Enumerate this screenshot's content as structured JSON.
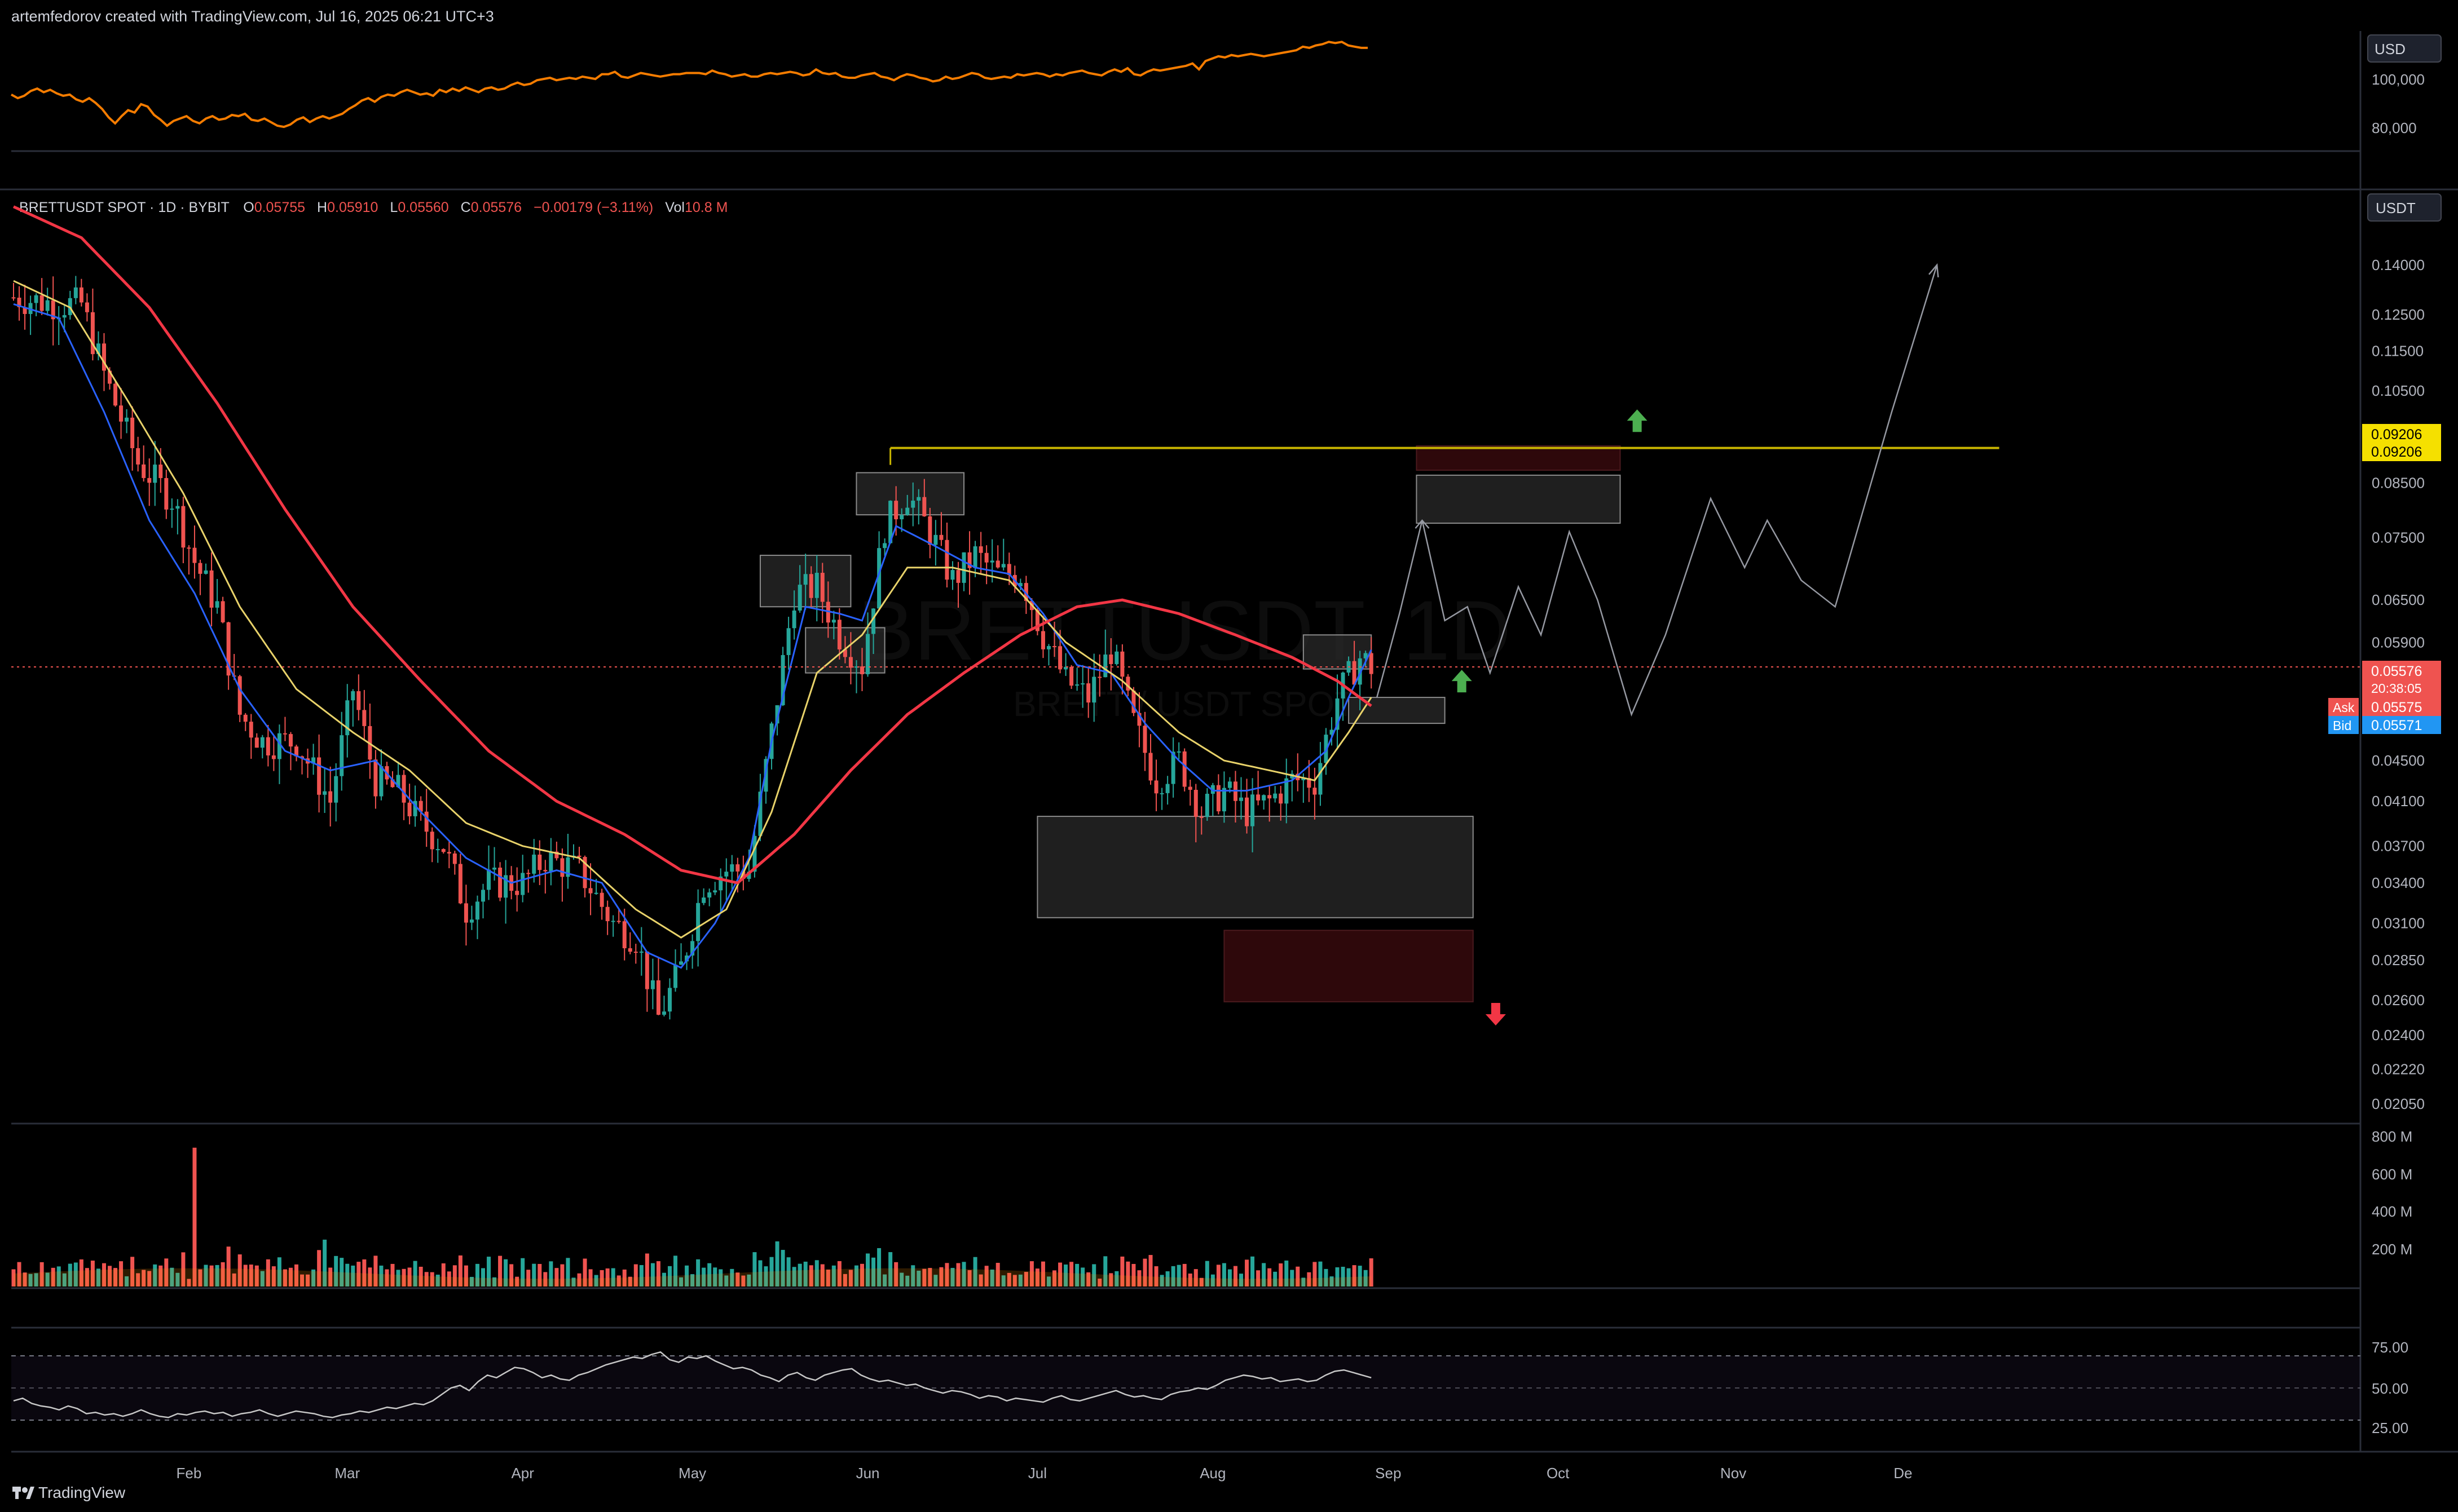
{
  "header": {
    "credit": "artemfedorov created with TradingView.com, Jul 16, 2025 06:21 UTC+3"
  },
  "footer": {
    "brand": "TradingView"
  },
  "colors": {
    "up": "#26a69a",
    "down": "#ef5350",
    "ema_fast": "#2962ff",
    "ema_mid": "#e8d26a",
    "ema_slow": "#f23645",
    "compare": "#f57c00",
    "level": "#c8b400",
    "rsi": "#c7c7c7"
  },
  "compare_pane": {
    "currency": "USD",
    "ticks": [
      "100,000",
      "80,000"
    ],
    "series": [
      104,
      101,
      103,
      107,
      109,
      106,
      108,
      105,
      103,
      104,
      100,
      98,
      101,
      97,
      92,
      85,
      80,
      86,
      91,
      89,
      96,
      94,
      87,
      83,
      78,
      82,
      84,
      86,
      82,
      80,
      84,
      86,
      83,
      84,
      87,
      86,
      88,
      83,
      82,
      84,
      81,
      78,
      77,
      79,
      83,
      85,
      81,
      84,
      86,
      84,
      86,
      88,
      92,
      95,
      99,
      101,
      98,
      102,
      104,
      103,
      106,
      108,
      106,
      104,
      105,
      103,
      108,
      106,
      109,
      107,
      110,
      108,
      106,
      109,
      110,
      108,
      109,
      112,
      114,
      112,
      113,
      116,
      117,
      118,
      116,
      117,
      118,
      117,
      119,
      118,
      117,
      121,
      121,
      123,
      119,
      118,
      120,
      122,
      121,
      120,
      119,
      120,
      121,
      121,
      122,
      122,
      122,
      121,
      124,
      122,
      121,
      119,
      120,
      121,
      119,
      119,
      121,
      122,
      121,
      122,
      123,
      122,
      120,
      121,
      125,
      122,
      121,
      122,
      119,
      118,
      118,
      120,
      121,
      122,
      119,
      118,
      116,
      119,
      121,
      120,
      118,
      117,
      115,
      116,
      119,
      117,
      118,
      120,
      122,
      121,
      118,
      117,
      118,
      119,
      118,
      121,
      120,
      121,
      122,
      121,
      119,
      121,
      120,
      122,
      123,
      124,
      122,
      121,
      120,
      123,
      125,
      123,
      126,
      121,
      120,
      123,
      125,
      124,
      125,
      126,
      127,
      128,
      130,
      125,
      132,
      134,
      136,
      135,
      137,
      136,
      137,
      138,
      137,
      136,
      137,
      138,
      139,
      140,
      141,
      144,
      143,
      145,
      146,
      148,
      147,
      148,
      145,
      144,
      143,
      143
    ]
  },
  "legend": {
    "symbol": "BRETTUSDT SPOT · 1D · BYBIT",
    "o_label": "O",
    "o": "0.05755",
    "h_label": "H",
    "h": "0.05910",
    "l_label": "L",
    "l": "0.05560",
    "c_label": "C",
    "c": "0.05576",
    "change": "−0.00179 (−3.11%)",
    "vol_label": "Vol",
    "vol": "10.8 M"
  },
  "watermark": {
    "line1": "BRETTUSDT, 1D",
    "line2": "BRETT / USDT SPOT"
  },
  "price_axis": {
    "currency": "USDT",
    "ticks": [
      "0.14000",
      "0.12500",
      "0.11500",
      "0.10500",
      "0.09206",
      "0.08500",
      "0.07500",
      "0.06500",
      "0.05900",
      "0.04500",
      "0.04100",
      "0.03700",
      "0.03400",
      "0.03100",
      "0.02850",
      "0.02600",
      "0.02400",
      "0.02220",
      "0.02050"
    ],
    "level_label": "0.09206",
    "last_price": "0.05576",
    "countdown": "20:38:05",
    "ask_label": "Ask",
    "ask": "0.05575",
    "bid_label": "Bid",
    "bid": "0.05571"
  },
  "volume_axis": {
    "ticks": [
      "800 M",
      "600 M",
      "400 M",
      "200 M"
    ]
  },
  "rsi_axis": {
    "ticks": [
      "75.00",
      "50.00",
      "25.00"
    ]
  },
  "time_axis": {
    "ticks": [
      "Feb",
      "Mar",
      "Apr",
      "May",
      "Jun",
      "Jul",
      "Aug",
      "Sep",
      "Oct",
      "Nov",
      "De"
    ]
  },
  "chart_data": {
    "type": "candlestick",
    "symbol": "BRETTUSDT",
    "interval": "1D",
    "price_scale": "log",
    "anchors": [
      {
        "i": 0,
        "p": 0.13
      },
      {
        "i": 8,
        "p": 0.128
      },
      {
        "i": 12,
        "p": 0.128
      },
      {
        "i": 16,
        "p": 0.109
      },
      {
        "i": 22,
        "p": 0.089
      },
      {
        "i": 28,
        "p": 0.082
      },
      {
        "i": 32,
        "p": 0.071
      },
      {
        "i": 36,
        "p": 0.064
      },
      {
        "i": 40,
        "p": 0.05
      },
      {
        "i": 44,
        "p": 0.047
      },
      {
        "i": 50,
        "p": 0.047
      },
      {
        "i": 56,
        "p": 0.041
      },
      {
        "i": 60,
        "p": 0.053
      },
      {
        "i": 64,
        "p": 0.043
      },
      {
        "i": 68,
        "p": 0.042
      },
      {
        "i": 72,
        "p": 0.039
      },
      {
        "i": 76,
        "p": 0.037
      },
      {
        "i": 80,
        "p": 0.032
      },
      {
        "i": 84,
        "p": 0.034
      },
      {
        "i": 90,
        "p": 0.034
      },
      {
        "i": 94,
        "p": 0.036
      },
      {
        "i": 100,
        "p": 0.035
      },
      {
        "i": 106,
        "p": 0.031
      },
      {
        "i": 110,
        "p": 0.03
      },
      {
        "i": 114,
        "p": 0.025
      },
      {
        "i": 118,
        "p": 0.028
      },
      {
        "i": 122,
        "p": 0.034
      },
      {
        "i": 126,
        "p": 0.035
      },
      {
        "i": 130,
        "p": 0.035
      },
      {
        "i": 134,
        "p": 0.048
      },
      {
        "i": 138,
        "p": 0.066
      },
      {
        "i": 142,
        "p": 0.067
      },
      {
        "i": 146,
        "p": 0.06
      },
      {
        "i": 150,
        "p": 0.056
      },
      {
        "i": 154,
        "p": 0.077
      },
      {
        "i": 158,
        "p": 0.083
      },
      {
        "i": 162,
        "p": 0.076
      },
      {
        "i": 166,
        "p": 0.068
      },
      {
        "i": 170,
        "p": 0.072
      },
      {
        "i": 174,
        "p": 0.069
      },
      {
        "i": 178,
        "p": 0.069
      },
      {
        "i": 182,
        "p": 0.06
      },
      {
        "i": 186,
        "p": 0.054
      },
      {
        "i": 190,
        "p": 0.052
      },
      {
        "i": 194,
        "p": 0.058
      },
      {
        "i": 198,
        "p": 0.049
      },
      {
        "i": 202,
        "p": 0.043
      },
      {
        "i": 206,
        "p": 0.045
      },
      {
        "i": 210,
        "p": 0.04
      },
      {
        "i": 214,
        "p": 0.042
      },
      {
        "i": 218,
        "p": 0.04
      },
      {
        "i": 222,
        "p": 0.041
      },
      {
        "i": 226,
        "p": 0.043
      },
      {
        "i": 230,
        "p": 0.043
      },
      {
        "i": 234,
        "p": 0.052
      },
      {
        "i": 238,
        "p": 0.057
      },
      {
        "i": 240,
        "p": 0.0558
      }
    ],
    "ema_fast": [
      [
        0,
        0.128
      ],
      [
        8,
        0.124
      ],
      [
        16,
        0.1
      ],
      [
        24,
        0.078
      ],
      [
        32,
        0.066
      ],
      [
        40,
        0.053
      ],
      [
        48,
        0.046
      ],
      [
        56,
        0.044
      ],
      [
        64,
        0.045
      ],
      [
        72,
        0.04
      ],
      [
        80,
        0.036
      ],
      [
        88,
        0.034
      ],
      [
        96,
        0.035
      ],
      [
        104,
        0.034
      ],
      [
        112,
        0.029
      ],
      [
        118,
        0.028
      ],
      [
        124,
        0.031
      ],
      [
        130,
        0.036
      ],
      [
        134,
        0.047
      ],
      [
        140,
        0.064
      ],
      [
        146,
        0.063
      ],
      [
        150,
        0.062
      ],
      [
        156,
        0.077
      ],
      [
        162,
        0.074
      ],
      [
        170,
        0.07
      ],
      [
        176,
        0.069
      ],
      [
        182,
        0.063
      ],
      [
        188,
        0.056
      ],
      [
        194,
        0.055
      ],
      [
        200,
        0.049
      ],
      [
        206,
        0.045
      ],
      [
        212,
        0.042
      ],
      [
        218,
        0.042
      ],
      [
        226,
        0.043
      ],
      [
        232,
        0.046
      ],
      [
        236,
        0.052
      ],
      [
        240,
        0.058
      ]
    ],
    "ema_mid": [
      [
        0,
        0.135
      ],
      [
        10,
        0.127
      ],
      [
        20,
        0.103
      ],
      [
        30,
        0.083
      ],
      [
        40,
        0.064
      ],
      [
        50,
        0.053
      ],
      [
        60,
        0.048
      ],
      [
        70,
        0.044
      ],
      [
        80,
        0.039
      ],
      [
        90,
        0.037
      ],
      [
        100,
        0.036
      ],
      [
        110,
        0.032
      ],
      [
        118,
        0.03
      ],
      [
        126,
        0.032
      ],
      [
        134,
        0.04
      ],
      [
        142,
        0.055
      ],
      [
        150,
        0.06
      ],
      [
        158,
        0.07
      ],
      [
        166,
        0.07
      ],
      [
        176,
        0.068
      ],
      [
        186,
        0.059
      ],
      [
        196,
        0.054
      ],
      [
        206,
        0.048
      ],
      [
        214,
        0.045
      ],
      [
        222,
        0.044
      ],
      [
        230,
        0.043
      ],
      [
        236,
        0.048
      ],
      [
        240,
        0.052
      ]
    ],
    "ema_slow": [
      [
        0,
        0.16
      ],
      [
        12,
        0.149
      ],
      [
        24,
        0.127
      ],
      [
        36,
        0.102
      ],
      [
        48,
        0.08
      ],
      [
        60,
        0.064
      ],
      [
        72,
        0.054
      ],
      [
        84,
        0.046
      ],
      [
        96,
        0.041
      ],
      [
        108,
        0.038
      ],
      [
        118,
        0.035
      ],
      [
        128,
        0.034
      ],
      [
        138,
        0.038
      ],
      [
        148,
        0.044
      ],
      [
        158,
        0.05
      ],
      [
        168,
        0.055
      ],
      [
        178,
        0.06
      ],
      [
        188,
        0.064
      ],
      [
        196,
        0.065
      ],
      [
        206,
        0.063
      ],
      [
        216,
        0.06
      ],
      [
        226,
        0.057
      ],
      [
        234,
        0.054
      ],
      [
        240,
        0.051
      ]
    ],
    "resistance_level": 0.09206,
    "projection": [
      [
        241,
        0.052
      ],
      [
        245,
        0.063
      ],
      [
        249,
        0.078
      ],
      [
        253,
        0.062
      ],
      [
        257,
        0.064
      ],
      [
        261,
        0.055
      ],
      [
        266,
        0.067
      ],
      [
        270,
        0.06
      ],
      [
        275,
        0.076
      ],
      [
        280,
        0.065
      ],
      [
        286,
        0.05
      ],
      [
        292,
        0.06
      ],
      [
        300,
        0.082
      ],
      [
        306,
        0.07
      ],
      [
        310,
        0.078
      ],
      [
        316,
        0.068
      ],
      [
        322,
        0.064
      ],
      [
        332,
        0.1
      ],
      [
        340,
        0.14
      ]
    ],
    "zones": [
      {
        "kind": "supply",
        "i0": 248,
        "i1": 284,
        "p_high": 0.0925,
        "p_low": 0.0875
      },
      {
        "kind": "range",
        "i0": 248,
        "i1": 284,
        "p_high": 0.0865,
        "p_low": 0.0775
      },
      {
        "kind": "range",
        "i0": 132,
        "i1": 148,
        "p_high": 0.072,
        "p_low": 0.064
      },
      {
        "kind": "range",
        "i0": 140,
        "i1": 154,
        "p_high": 0.061,
        "p_low": 0.055
      },
      {
        "kind": "range",
        "i0": 149,
        "i1": 168,
        "p_high": 0.087,
        "p_low": 0.079
      },
      {
        "kind": "range",
        "i0": 228,
        "i1": 240,
        "p_high": 0.06,
        "p_low": 0.0555
      },
      {
        "kind": "range",
        "i0": 236,
        "i1": 253,
        "p_high": 0.052,
        "p_low": 0.049
      },
      {
        "kind": "range",
        "i0": 181,
        "i1": 258,
        "p_high": 0.0396,
        "p_low": 0.0314
      },
      {
        "kind": "demand",
        "i0": 214,
        "i1": 258,
        "p_high": 0.0305,
        "p_low": 0.0259
      }
    ],
    "signals": [
      {
        "dir": "up",
        "i": 287,
        "p": 0.0975
      },
      {
        "dir": "up",
        "i": 256,
        "p": 0.0537
      },
      {
        "dir": "down",
        "i": 262,
        "p": 0.0253
      }
    ],
    "volume_axis_max_M": 900,
    "rsi": [
      40,
      42,
      38,
      36,
      35,
      33,
      36,
      34,
      30,
      31,
      29,
      30,
      28,
      30,
      33,
      30,
      28,
      27,
      30,
      29,
      31,
      32,
      30,
      31,
      28,
      30,
      31,
      33,
      30,
      28,
      30,
      32,
      31,
      30,
      28,
      27,
      29,
      30,
      32,
      31,
      33,
      35,
      34,
      36,
      38,
      37,
      40,
      45,
      50,
      52,
      48,
      55,
      60,
      58,
      62,
      66,
      65,
      62,
      58,
      60,
      57,
      56,
      60,
      62,
      65,
      68,
      70,
      72,
      74,
      73,
      76,
      78,
      72,
      70,
      74,
      73,
      75,
      71,
      68,
      65,
      66,
      64,
      60,
      58,
      55,
      60,
      62,
      58,
      56,
      60,
      62,
      64,
      65,
      60,
      57,
      55,
      56,
      54,
      52,
      53,
      50,
      48,
      46,
      48,
      47,
      45,
      42,
      44,
      43,
      40,
      42,
      41,
      40,
      39,
      42,
      44,
      41,
      40,
      42,
      44,
      46,
      48,
      45,
      43,
      44,
      42,
      41,
      45,
      47,
      48,
      50,
      49,
      52,
      56,
      58,
      60,
      59,
      57,
      58,
      55,
      56,
      57,
      55,
      56,
      60,
      63,
      64,
      62,
      60,
      58
    ]
  }
}
